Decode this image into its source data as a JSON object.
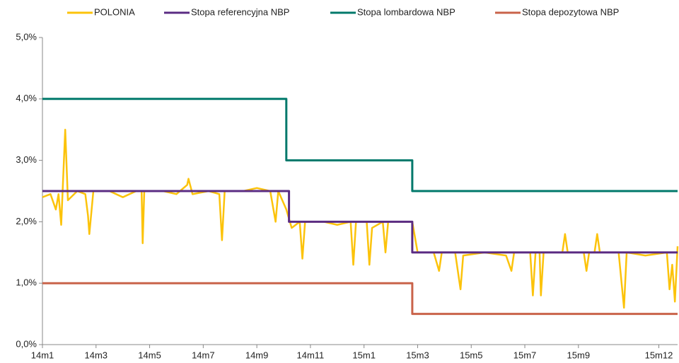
{
  "chart_data": {
    "type": "line",
    "xlim": [
      0,
      23.7
    ],
    "xticks": [
      {
        "value": 0,
        "label": "14m1"
      },
      {
        "value": 2,
        "label": "14m3"
      },
      {
        "value": 4,
        "label": "14m5"
      },
      {
        "value": 6,
        "label": "14m7"
      },
      {
        "value": 8,
        "label": "14m9"
      },
      {
        "value": 10,
        "label": "14m11"
      },
      {
        "value": 12,
        "label": "15m1"
      },
      {
        "value": 14,
        "label": "15m3"
      },
      {
        "value": 16,
        "label": "15m5"
      },
      {
        "value": 18,
        "label": "15m7"
      },
      {
        "value": 20,
        "label": "15m9"
      },
      {
        "value": 23,
        "label": "15m12"
      }
    ],
    "ylim": [
      0,
      5
    ],
    "yticks": [
      {
        "value": 0,
        "label": "0,0%"
      },
      {
        "value": 1,
        "label": "1,0%"
      },
      {
        "value": 2,
        "label": "2,0%"
      },
      {
        "value": 3,
        "label": "3,0%"
      },
      {
        "value": 4,
        "label": "4,0%"
      },
      {
        "value": 5,
        "label": "5,0%"
      }
    ],
    "grid": false,
    "legend": "top",
    "series": [
      {
        "name": "POLONIA",
        "color": "#fcc30b",
        "x": [
          0,
          0.3,
          0.5,
          0.6,
          0.7,
          0.85,
          0.95,
          1.3,
          1.6,
          1.7,
          1.75,
          1.9,
          2.5,
          3.0,
          3.5,
          3.7,
          3.74,
          3.8,
          4.5,
          5.0,
          5.4,
          5.45,
          5.6,
          6.2,
          6.6,
          6.7,
          6.8,
          7.5,
          8.0,
          8.5,
          8.7,
          8.8,
          9.1,
          9.3,
          9.6,
          9.7,
          9.8,
          10.5,
          11.0,
          11.5,
          11.6,
          11.7,
          12.1,
          12.2,
          12.3,
          12.7,
          12.8,
          12.9,
          13.5,
          13.8,
          14.0,
          14.6,
          14.8,
          14.9,
          15.4,
          15.6,
          15.7,
          16.5,
          17.3,
          17.5,
          17.6,
          18.2,
          18.3,
          18.4,
          18.55,
          18.6,
          18.7,
          19.4,
          19.5,
          19.6,
          20.2,
          20.3,
          20.4,
          20.6,
          20.7,
          20.8,
          21.5,
          21.7,
          21.8,
          22.5,
          23.3,
          23.4,
          23.5,
          23.6,
          23.7
        ],
        "values": [
          2.4,
          2.45,
          2.2,
          2.45,
          1.95,
          3.5,
          2.35,
          2.5,
          2.45,
          2.1,
          1.8,
          2.5,
          2.5,
          2.4,
          2.5,
          2.5,
          1.65,
          2.5,
          2.5,
          2.45,
          2.6,
          2.7,
          2.45,
          2.5,
          2.45,
          1.7,
          2.5,
          2.5,
          2.55,
          2.5,
          2.0,
          2.5,
          2.2,
          1.9,
          2.0,
          1.4,
          2.0,
          2.0,
          1.95,
          2.0,
          1.3,
          2.0,
          2.0,
          1.3,
          1.9,
          2.0,
          1.5,
          2.0,
          2.0,
          2.0,
          1.5,
          1.5,
          1.2,
          1.5,
          1.5,
          0.9,
          1.45,
          1.5,
          1.45,
          1.2,
          1.5,
          1.5,
          0.8,
          1.5,
          1.5,
          0.8,
          1.5,
          1.5,
          1.8,
          1.5,
          1.5,
          1.2,
          1.5,
          1.5,
          1.8,
          1.5,
          1.5,
          0.6,
          1.5,
          1.45,
          1.5,
          0.9,
          1.3,
          0.7,
          1.6
        ]
      },
      {
        "name": "Stopa referencyjna NBP",
        "color": "#5b2c83",
        "x": [
          0,
          9.2,
          9.2,
          13.8,
          13.8,
          23.7
        ],
        "values": [
          2.5,
          2.5,
          2.0,
          2.0,
          1.5,
          1.5
        ]
      },
      {
        "name": "Stopa lombardowa NBP",
        "color": "#00796b",
        "x": [
          0,
          9.1,
          9.1,
          13.8,
          13.8,
          23.7
        ],
        "values": [
          4.0,
          4.0,
          3.0,
          3.0,
          2.5,
          2.5
        ]
      },
      {
        "name": "Stopa depozytowa NBP",
        "color": "#c9634a",
        "x": [
          0,
          13.8,
          13.8,
          23.7
        ],
        "values": [
          1.0,
          1.0,
          0.5,
          0.5
        ]
      }
    ]
  }
}
